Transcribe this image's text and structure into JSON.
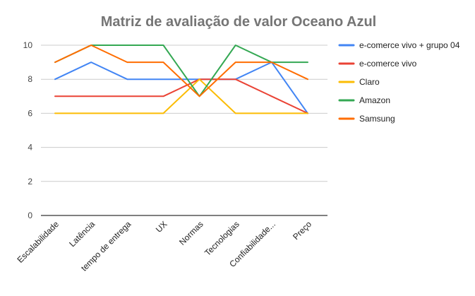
{
  "chart_data": {
    "type": "line",
    "title": "Matriz de avaliação de valor Oceano Azul",
    "xlabel": "",
    "ylabel": "",
    "categories": [
      "Escalabilidade",
      "Latência",
      "tempo de entrega",
      "UX",
      "Normas",
      "Tecnologias",
      "Confiabilidade...",
      "Preço"
    ],
    "ylim": [
      0,
      10
    ],
    "yticks": [
      0,
      2,
      4,
      6,
      8,
      10
    ],
    "grid": true,
    "legend_position": "right",
    "series": [
      {
        "name": "e-comerce vivo + grupo 04",
        "color": "#4285F4",
        "values": [
          8,
          9,
          8,
          8,
          8,
          8,
          9,
          6
        ]
      },
      {
        "name": "e-comerce vivo",
        "color": "#EA4335",
        "values": [
          7,
          7,
          7,
          7,
          8,
          8,
          7,
          6
        ]
      },
      {
        "name": "Claro",
        "color": "#FBBC04",
        "values": [
          6,
          6,
          6,
          6,
          8,
          6,
          6,
          6
        ]
      },
      {
        "name": "Amazon",
        "color": "#34A853",
        "values": [
          9,
          10,
          10,
          10,
          7,
          10,
          9,
          9
        ]
      },
      {
        "name": "Samsung",
        "color": "#FF6D01",
        "values": [
          9,
          10,
          9,
          9,
          7,
          9,
          9,
          8
        ]
      }
    ]
  }
}
